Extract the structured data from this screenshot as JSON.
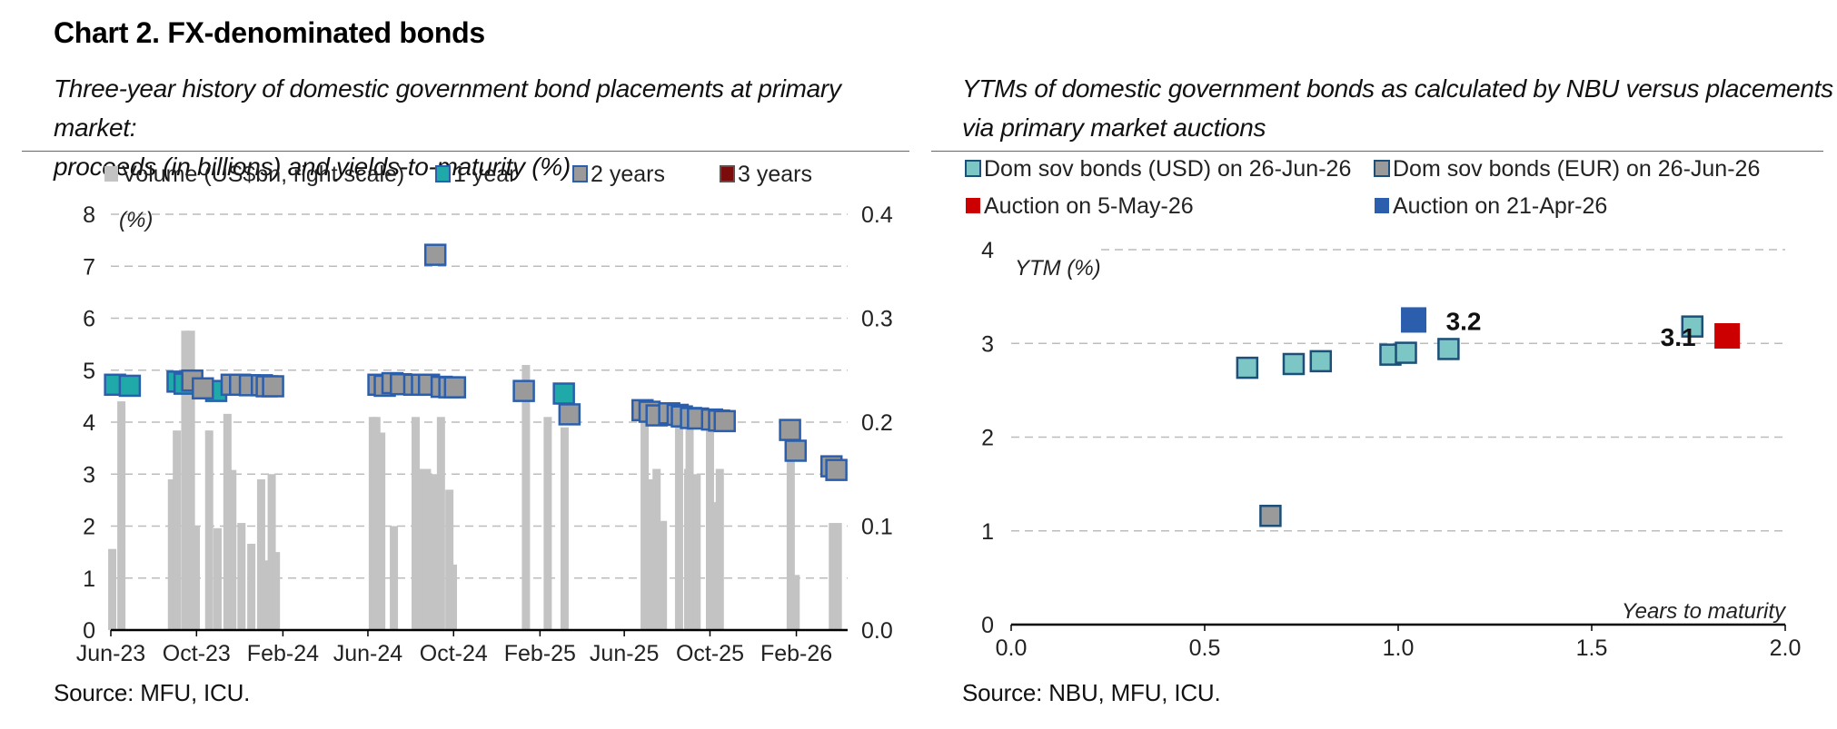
{
  "page_title": "Chart 2. FX-denominated bonds",
  "left": {
    "subtitle_line1": "Three-year history of domestic government bond placements at primary market:",
    "subtitle_line2": "proceeds (in billions) and yields-to-maturity (%)",
    "source": "Source: MFU, ICU."
  },
  "right": {
    "subtitle_line1": "YTMs of domestic government bonds as calculated by NBU versus placements",
    "subtitle_line2": "via primary market auctions",
    "source": "Source: NBU, MFU, ICU."
  },
  "colors": {
    "volume_bar": "#c3c3c3",
    "one_year_fill": "#1fa9a9",
    "two_year_fill": "#9a9a9a",
    "three_year_fill": "#7a0c0c",
    "marker_border": "#2b5fad",
    "usd_fill": "#7cc7c5",
    "eur_fill": "#9a9a9a",
    "auction_may": "#cc0000",
    "auction_apr": "#2b5fad",
    "grid": "#bcbcbc"
  },
  "chart_data": [
    {
      "type": "bar+scatter",
      "ylabel": "(%)",
      "ylim": [
        0,
        8
      ],
      "yticks": [
        "0",
        "1",
        "2",
        "3",
        "4",
        "5",
        "6",
        "7",
        "8"
      ],
      "y2lim": [
        0,
        0.4
      ],
      "y2ticks": [
        "0.0",
        "0.1",
        "0.2",
        "0.3",
        "0.4"
      ],
      "xlim": [
        "2023-06-01",
        "2026-04-15"
      ],
      "xticks": [
        "Jun-23",
        "Oct-23",
        "Feb-24",
        "Jun-24",
        "Oct-24",
        "Feb-25",
        "Jun-25",
        "Oct-25",
        "Feb-26"
      ],
      "xtick_dates": [
        "2023-06-01",
        "2023-10-01",
        "2024-02-01",
        "2024-06-01",
        "2024-10-01",
        "2025-02-01",
        "2025-06-01",
        "2025-10-01",
        "2026-02-01"
      ],
      "grid": true,
      "legend_position": "top",
      "series": [
        {
          "name": "Volume (US$bn, right scale)",
          "kind": "bar",
          "points": [
            [
              "2023-06-03",
              0.078
            ],
            [
              "2023-06-16",
              0.22
            ],
            [
              "2023-08-27",
              0.145
            ],
            [
              "2023-09-03",
              0.192
            ],
            [
              "2023-09-15",
              0.288
            ],
            [
              "2023-09-23",
              0.288
            ],
            [
              "2023-09-30",
              0.1
            ],
            [
              "2023-10-19",
              0.192
            ],
            [
              "2023-10-31",
              0.098
            ],
            [
              "2023-11-14",
              0.208
            ],
            [
              "2023-11-21",
              0.154
            ],
            [
              "2023-12-04",
              0.103
            ],
            [
              "2023-12-18",
              0.083
            ],
            [
              "2024-01-01",
              0.145
            ],
            [
              "2024-01-06",
              0.067
            ],
            [
              "2024-01-16",
              0.15
            ],
            [
              "2024-01-22",
              0.075
            ],
            [
              "2024-06-08",
              0.205
            ],
            [
              "2024-06-13",
              0.205
            ],
            [
              "2024-06-20",
              0.19
            ],
            [
              "2024-07-08",
              0.1
            ],
            [
              "2024-08-08",
              0.205
            ],
            [
              "2024-08-15",
              0.155
            ],
            [
              "2024-08-24",
              0.155
            ],
            [
              "2024-09-03",
              0.15
            ],
            [
              "2024-09-13",
              0.205
            ],
            [
              "2024-09-25",
              0.135
            ],
            [
              "2024-09-30",
              0.063
            ],
            [
              "2025-01-12",
              0.255
            ],
            [
              "2025-02-12",
              0.205
            ],
            [
              "2025-03-08",
              0.195
            ],
            [
              "2025-06-30",
              0.21
            ],
            [
              "2025-07-07",
              0.145
            ],
            [
              "2025-07-17",
              0.155
            ],
            [
              "2025-07-26",
              0.105
            ],
            [
              "2025-08-18",
              0.21
            ],
            [
              "2025-08-31",
              0.155
            ],
            [
              "2025-09-02",
              0.21
            ],
            [
              "2025-09-12",
              0.15
            ],
            [
              "2025-10-01",
              0.21
            ],
            [
              "2025-10-08",
              0.123
            ],
            [
              "2025-10-15",
              0.155
            ],
            [
              "2026-01-24",
              0.195
            ],
            [
              "2026-01-31",
              0.053
            ],
            [
              "2026-03-25",
              0.103
            ],
            [
              "2026-04-01",
              0.103
            ]
          ]
        },
        {
          "name": "1 year",
          "kind": "marker",
          "points": [
            [
              "2023-06-07",
              4.72
            ],
            [
              "2023-06-28",
              4.7
            ],
            [
              "2023-09-04",
              4.78
            ],
            [
              "2023-09-14",
              4.74
            ],
            [
              "2023-10-29",
              4.6
            ],
            [
              "2025-03-07",
              4.55
            ]
          ]
        },
        {
          "name": "2 years",
          "kind": "marker",
          "points": [
            [
              "2023-09-25",
              4.8
            ],
            [
              "2023-10-10",
              4.65
            ],
            [
              "2023-11-20",
              4.72
            ],
            [
              "2023-12-02",
              4.72
            ],
            [
              "2023-12-16",
              4.71
            ],
            [
              "2024-01-02",
              4.71
            ],
            [
              "2024-01-09",
              4.69
            ],
            [
              "2024-01-18",
              4.69
            ],
            [
              "2024-06-16",
              4.72
            ],
            [
              "2024-06-25",
              4.7
            ],
            [
              "2024-07-06",
              4.75
            ],
            [
              "2024-07-18",
              4.73
            ],
            [
              "2024-08-06",
              4.72
            ],
            [
              "2024-08-17",
              4.72
            ],
            [
              "2024-08-27",
              4.72
            ],
            [
              "2024-09-05",
              7.22
            ],
            [
              "2024-09-14",
              4.68
            ],
            [
              "2024-09-25",
              4.67
            ],
            [
              "2024-10-03",
              4.67
            ],
            [
              "2025-01-09",
              4.6
            ],
            [
              "2025-03-15",
              4.15
            ],
            [
              "2025-06-27",
              4.23
            ],
            [
              "2025-07-07",
              4.2
            ],
            [
              "2025-07-17",
              4.13
            ],
            [
              "2025-08-04",
              4.17
            ],
            [
              "2025-08-16",
              4.14
            ],
            [
              "2025-08-22",
              4.11
            ],
            [
              "2025-09-04",
              4.08
            ],
            [
              "2025-09-14",
              4.07
            ],
            [
              "2025-10-04",
              4.05
            ],
            [
              "2025-10-14",
              4.03
            ],
            [
              "2025-10-22",
              4.02
            ],
            [
              "2026-01-23",
              3.85
            ],
            [
              "2026-01-31",
              3.45
            ],
            [
              "2026-03-23",
              3.15
            ],
            [
              "2026-03-30",
              3.08
            ]
          ]
        },
        {
          "name": "3 years",
          "kind": "marker",
          "points": []
        }
      ]
    },
    {
      "type": "scatter",
      "xlabel": "Years to maturity",
      "ylabel": "YTM (%)",
      "xlim": [
        0,
        2
      ],
      "xticks": [
        "0.0",
        "0.5",
        "1.0",
        "1.5",
        "2.0"
      ],
      "ylim": [
        0,
        4
      ],
      "yticks": [
        "0",
        "1",
        "2",
        "3",
        "4"
      ],
      "grid": true,
      "legend_position": "top",
      "series": [
        {
          "name": "Dom sov bonds (USD) on 26-Jun-26",
          "points": [
            [
              0.61,
              2.74
            ],
            [
              0.73,
              2.78
            ],
            [
              0.8,
              2.81
            ],
            [
              0.98,
              2.88
            ],
            [
              1.02,
              2.9
            ],
            [
              1.13,
              2.94
            ],
            [
              1.76,
              3.18
            ]
          ]
        },
        {
          "name": "Dom sov bonds (EUR) on 26-Jun-26",
          "points": [
            [
              0.67,
              1.16
            ]
          ]
        },
        {
          "name": "Auction on 5-May-26",
          "points": [
            [
              1.85,
              3.08
            ]
          ],
          "data_label": "3.1"
        },
        {
          "name": "Auction on 21-Apr-26",
          "points": [
            [
              1.04,
              3.25
            ]
          ],
          "data_label": "3.2"
        }
      ]
    }
  ]
}
